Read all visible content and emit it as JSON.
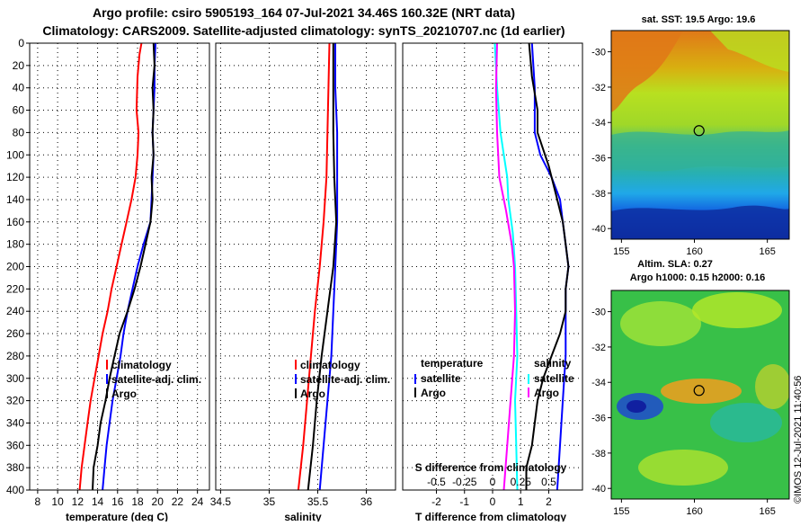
{
  "title": {
    "line1": "Argo profile: csiro 5905193_164 07-Jul-2021 34.46S 160.32E (NRT data)",
    "line2": "Climatology: CARS2009. Satellite-adjusted climatology: synTS_20210707.nc (1d earlier)"
  },
  "watermark": "©IMOS 12-Jul-2021 11:40:56",
  "colors": {
    "climatology": "#ff0000",
    "satellite": "#0000ff",
    "argo": "#000000",
    "t_diff": "#ff00ff",
    "s_diff": "#00ffff"
  },
  "chart_data": [
    {
      "type": "line",
      "name": "temperature-profile",
      "xlabel": "temperature (deg C)",
      "xlim": [
        7.2,
        25.2
      ],
      "ylim": [
        0,
        400
      ],
      "xticks": [
        8,
        10,
        12,
        14,
        16,
        18,
        20,
        22,
        24
      ],
      "yticks": [
        0,
        20,
        40,
        60,
        80,
        100,
        120,
        140,
        160,
        180,
        200,
        220,
        240,
        260,
        280,
        300,
        320,
        340,
        360,
        380,
        400
      ],
      "legend": [
        "climatology",
        "satellite-adj. clim.",
        "Argo"
      ],
      "series": [
        {
          "name": "climatology",
          "color": "#ff0000",
          "points": [
            [
              18.4,
              0
            ],
            [
              18.2,
              10
            ],
            [
              18.0,
              30
            ],
            [
              17.9,
              60
            ],
            [
              18.1,
              80
            ],
            [
              18.0,
              100
            ],
            [
              17.8,
              120
            ],
            [
              17.4,
              140
            ],
            [
              16.9,
              160
            ],
            [
              16.4,
              180
            ],
            [
              15.9,
              200
            ],
            [
              15.4,
              220
            ],
            [
              15.0,
              240
            ],
            [
              14.5,
              260
            ],
            [
              14.1,
              280
            ],
            [
              13.7,
              300
            ],
            [
              13.3,
              320
            ],
            [
              13.0,
              340
            ],
            [
              12.7,
              360
            ],
            [
              12.4,
              380
            ],
            [
              12.2,
              400
            ]
          ]
        },
        {
          "name": "satellite-adj. clim.",
          "color": "#0000ff",
          "points": [
            [
              19.8,
              0
            ],
            [
              19.7,
              20
            ],
            [
              19.7,
              40
            ],
            [
              19.6,
              60
            ],
            [
              19.5,
              80
            ],
            [
              19.6,
              100
            ],
            [
              19.5,
              120
            ],
            [
              19.4,
              140
            ],
            [
              19.3,
              160
            ],
            [
              18.6,
              180
            ],
            [
              18.0,
              200
            ],
            [
              17.5,
              220
            ],
            [
              17.0,
              240
            ],
            [
              16.6,
              260
            ],
            [
              16.3,
              280
            ],
            [
              15.9,
              300
            ],
            [
              15.5,
              320
            ],
            [
              15.2,
              340
            ],
            [
              14.9,
              360
            ],
            [
              14.7,
              380
            ],
            [
              14.5,
              400
            ]
          ]
        },
        {
          "name": "Argo",
          "color": "#000000",
          "points": [
            [
              19.6,
              0
            ],
            [
              19.7,
              20
            ],
            [
              19.5,
              40
            ],
            [
              19.6,
              60
            ],
            [
              19.5,
              80
            ],
            [
              19.6,
              100
            ],
            [
              19.4,
              120
            ],
            [
              19.5,
              140
            ],
            [
              19.3,
              160
            ],
            [
              18.8,
              180
            ],
            [
              18.3,
              200
            ],
            [
              17.7,
              220
            ],
            [
              17.0,
              240
            ],
            [
              16.2,
              260
            ],
            [
              15.7,
              280
            ],
            [
              15.2,
              300
            ],
            [
              14.8,
              320
            ],
            [
              14.3,
              340
            ],
            [
              14.0,
              360
            ],
            [
              13.6,
              380
            ],
            [
              13.5,
              400
            ]
          ]
        }
      ]
    },
    {
      "type": "line",
      "name": "salinity-profile",
      "xlabel": "salinity",
      "xlim": [
        34.45,
        36.3
      ],
      "ylim": [
        0,
        400
      ],
      "xticks": [
        34.5,
        35,
        35.5,
        36
      ],
      "xtick_labels": [
        "34.5",
        "35",
        "35.5",
        "36"
      ],
      "legend": [
        "climatology",
        "satellite-adj. clim.",
        "Argo"
      ],
      "series": [
        {
          "name": "climatology",
          "color": "#ff0000",
          "points": [
            [
              35.62,
              0
            ],
            [
              35.61,
              40
            ],
            [
              35.6,
              80
            ],
            [
              35.59,
              120
            ],
            [
              35.56,
              160
            ],
            [
              35.52,
              200
            ],
            [
              35.47,
              240
            ],
            [
              35.43,
              280
            ],
            [
              35.39,
              320
            ],
            [
              35.35,
              360
            ],
            [
              35.3,
              400
            ]
          ]
        },
        {
          "name": "satellite-adj. clim.",
          "color": "#0000ff",
          "points": [
            [
              35.68,
              0
            ],
            [
              35.68,
              40
            ],
            [
              35.7,
              80
            ],
            [
              35.7,
              120
            ],
            [
              35.7,
              160
            ],
            [
              35.68,
              200
            ],
            [
              35.66,
              240
            ],
            [
              35.64,
              280
            ],
            [
              35.6,
              320
            ],
            [
              35.56,
              360
            ],
            [
              35.52,
              400
            ]
          ]
        },
        {
          "name": "Argo",
          "color": "#000000",
          "points": [
            [
              35.66,
              0
            ],
            [
              35.66,
              40
            ],
            [
              35.66,
              80
            ],
            [
              35.67,
              120
            ],
            [
              35.69,
              160
            ],
            [
              35.66,
              200
            ],
            [
              35.6,
              240
            ],
            [
              35.54,
              280
            ],
            [
              35.49,
              320
            ],
            [
              35.45,
              360
            ],
            [
              35.4,
              400
            ]
          ]
        }
      ]
    },
    {
      "type": "line",
      "name": "difference-from-climatology",
      "xlabel": "T difference from climatology",
      "x2label": "S difference from climatology",
      "xlim": [
        -3.2,
        3.2
      ],
      "x2lim": [
        -0.8,
        0.8
      ],
      "ylim": [
        0,
        400
      ],
      "xticks": [
        -2,
        -1,
        0,
        1,
        2
      ],
      "x2ticks": [
        -0.5,
        -0.25,
        0,
        0.25,
        0.5
      ],
      "legend_temperature": {
        "title": "temperature",
        "items": [
          "satellite",
          "Argo"
        ]
      },
      "legend_salinity": {
        "title": "salinity",
        "items": [
          "satellite",
          "Argo"
        ]
      },
      "series": [
        {
          "name": "temperature satellite",
          "color": "#0000ff",
          "points": [
            [
              1.4,
              0
            ],
            [
              1.5,
              40
            ],
            [
              1.5,
              80
            ],
            [
              1.7,
              100
            ],
            [
              2.1,
              120
            ],
            [
              2.4,
              140
            ],
            [
              2.5,
              160
            ],
            [
              2.6,
              180
            ],
            [
              2.7,
              200
            ],
            [
              2.6,
              220
            ],
            [
              2.6,
              240
            ],
            [
              2.6,
              280
            ],
            [
              2.5,
              320
            ],
            [
              2.4,
              360
            ],
            [
              2.3,
              400
            ]
          ]
        },
        {
          "name": "temperature Argo",
          "color": "#000000",
          "points": [
            [
              1.3,
              0
            ],
            [
              1.4,
              30
            ],
            [
              1.6,
              60
            ],
            [
              1.6,
              80
            ],
            [
              2.0,
              110
            ],
            [
              2.3,
              140
            ],
            [
              2.5,
              160
            ],
            [
              2.6,
              180
            ],
            [
              2.7,
              200
            ],
            [
              2.6,
              220
            ],
            [
              2.6,
              240
            ],
            [
              2.4,
              260
            ],
            [
              2.1,
              280
            ],
            [
              1.8,
              300
            ],
            [
              1.6,
              320
            ],
            [
              1.5,
              340
            ],
            [
              1.4,
              360
            ],
            [
              1.2,
              380
            ],
            [
              1.2,
              400
            ]
          ]
        },
        {
          "name": "salinity satellite",
          "color": "#00ffff",
          "points": [
            [
              0.02,
              0
            ],
            [
              0.04,
              40
            ],
            [
              0.07,
              80
            ],
            [
              0.1,
              100
            ],
            [
              0.13,
              120
            ],
            [
              0.14,
              140
            ],
            [
              0.18,
              170
            ],
            [
              0.2,
              200
            ],
            [
              0.21,
              240
            ],
            [
              0.22,
              280
            ],
            [
              0.2,
              320
            ],
            [
              0.21,
              360
            ],
            [
              0.22,
              400
            ]
          ]
        },
        {
          "name": "salinity Argo",
          "color": "#ff00ff",
          "points": [
            [
              0.04,
              0
            ],
            [
              0.03,
              40
            ],
            [
              0.04,
              80
            ],
            [
              0.06,
              120
            ],
            [
              0.12,
              150
            ],
            [
              0.17,
              180
            ],
            [
              0.19,
              200
            ],
            [
              0.2,
              240
            ],
            [
              0.19,
              280
            ],
            [
              0.16,
              320
            ],
            [
              0.13,
              360
            ],
            [
              0.1,
              400
            ]
          ]
        }
      ]
    },
    {
      "type": "heatmap",
      "name": "sst-map",
      "title": "sat. SST: 19.5 Argo: 19.6",
      "xlim": [
        154.3,
        166.5
      ],
      "ylim": [
        -40.6,
        -28.8
      ],
      "xticks": [
        155,
        160,
        165
      ],
      "yticks": [
        -30,
        -32,
        -34,
        -36,
        -38,
        -40
      ],
      "marker": {
        "lon": 160.32,
        "lat": -34.46
      }
    },
    {
      "type": "heatmap",
      "name": "sla-map",
      "title": "Altim. SLA: 0.27",
      "subtitle": "Argo h1000: 0.15 h2000: 0.16",
      "xlim": [
        154.3,
        166.5
      ],
      "ylim": [
        -40.6,
        -28.8
      ],
      "xticks": [
        155,
        160,
        165
      ],
      "yticks": [
        -30,
        -32,
        -34,
        -36,
        -38,
        -40
      ],
      "marker": {
        "lon": 160.32,
        "lat": -34.46
      }
    }
  ]
}
